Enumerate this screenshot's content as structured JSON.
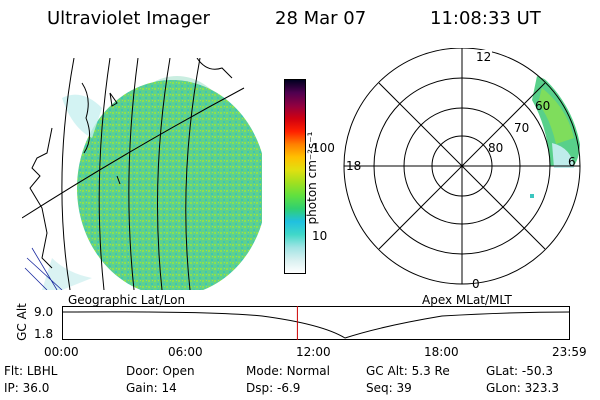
{
  "header": {
    "instrument": "Ultraviolet Imager",
    "date": "28 Mar 07",
    "time": "11:08:33 UT"
  },
  "left_panel": {
    "label": "Geographic Lat/Lon"
  },
  "right_panel": {
    "label": "Apex MLat/MLT",
    "mlt_labels": {
      "top": "12",
      "left": "18",
      "bottom": "0",
      "right": "6"
    },
    "mlat_labels": [
      "60",
      "70",
      "80"
    ]
  },
  "colorbar": {
    "unit": "photon cm⁻²s⁻¹",
    "ticks": [
      "100",
      "10"
    ],
    "scale": "log",
    "colors": [
      "#ffffff",
      "#d8f0f0",
      "#a0e4e4",
      "#40d8c8",
      "#20c0e0",
      "#30d070",
      "#60e040",
      "#a0e020",
      "#e0e010",
      "#ffc000",
      "#ff8000",
      "#ff2000",
      "#d00010",
      "#900040",
      "#500050",
      "#000020"
    ]
  },
  "altitude_plot": {
    "ylabel": "GC Alt",
    "yticks": [
      "9.0",
      "1.8"
    ],
    "xticks": [
      "00:00",
      "06:00",
      "12:00",
      "18:00",
      "23:59"
    ],
    "marker_time": "11:08",
    "marker_color": "#cc0000"
  },
  "info": {
    "row1": [
      {
        "label": "Flt:",
        "value": "LBHL"
      },
      {
        "label": "Door:",
        "value": "Open"
      },
      {
        "label": "Mode:",
        "value": "Normal"
      },
      {
        "label": "GC Alt:",
        "value": "5.3 Re"
      },
      {
        "label": "GLat:",
        "value": "-50.3"
      }
    ],
    "row2": [
      {
        "label": "IP:",
        "value": "36.0"
      },
      {
        "label": "Gain:",
        "value": "14"
      },
      {
        "label": "Dsp:",
        "value": "-6.9"
      },
      {
        "label": "Seq:",
        "value": "39"
      },
      {
        "label": "GLon:",
        "value": "323.3"
      }
    ]
  }
}
